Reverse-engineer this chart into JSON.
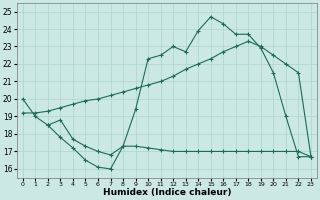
{
  "xlabel": "Humidex (Indice chaleur)",
  "xlim": [
    -0.5,
    23.5
  ],
  "ylim": [
    15.5,
    25.5
  ],
  "xticks": [
    0,
    1,
    2,
    3,
    4,
    5,
    6,
    7,
    8,
    9,
    10,
    11,
    12,
    13,
    14,
    15,
    16,
    17,
    18,
    19,
    20,
    21,
    22,
    23
  ],
  "yticks": [
    16,
    17,
    18,
    19,
    20,
    21,
    22,
    23,
    24,
    25
  ],
  "bg_color": "#cce8e3",
  "line_color": "#1a6b5a",
  "grid_color": "#aad4cc",
  "line1_x": [
    0,
    1,
    2,
    3,
    4,
    5,
    6,
    7,
    8,
    9,
    10,
    11,
    12,
    13,
    14,
    15,
    16,
    17,
    18,
    19,
    20,
    21,
    22,
    23
  ],
  "line1_y": [
    20.0,
    19.0,
    18.5,
    17.8,
    17.2,
    16.5,
    16.1,
    16.0,
    17.3,
    19.4,
    22.3,
    22.5,
    23.0,
    22.7,
    23.9,
    24.7,
    24.3,
    23.7,
    23.7,
    22.9,
    21.5,
    19.0,
    16.7,
    16.7
  ],
  "line2_x": [
    0,
    1,
    2,
    3,
    4,
    5,
    6,
    7,
    8,
    9,
    10,
    11,
    12,
    13,
    14,
    15,
    16,
    17,
    18,
    19,
    20,
    21,
    22,
    23
  ],
  "line2_y": [
    19.2,
    19.2,
    19.3,
    19.5,
    19.7,
    19.9,
    20.0,
    20.2,
    20.4,
    20.6,
    20.8,
    21.0,
    21.3,
    21.7,
    22.0,
    22.3,
    22.7,
    23.0,
    23.3,
    23.0,
    22.5,
    22.0,
    21.5,
    16.7
  ],
  "line3_x": [
    2,
    3,
    4,
    5,
    6,
    7,
    8,
    9,
    10,
    11,
    12,
    13,
    14,
    15,
    16,
    17,
    18,
    19,
    20,
    21,
    22,
    23
  ],
  "line3_y": [
    18.5,
    18.8,
    17.7,
    17.3,
    17.0,
    16.8,
    17.3,
    17.3,
    17.2,
    17.1,
    17.0,
    17.0,
    17.0,
    17.0,
    17.0,
    17.0,
    17.0,
    17.0,
    17.0,
    17.0,
    17.0,
    16.7
  ]
}
